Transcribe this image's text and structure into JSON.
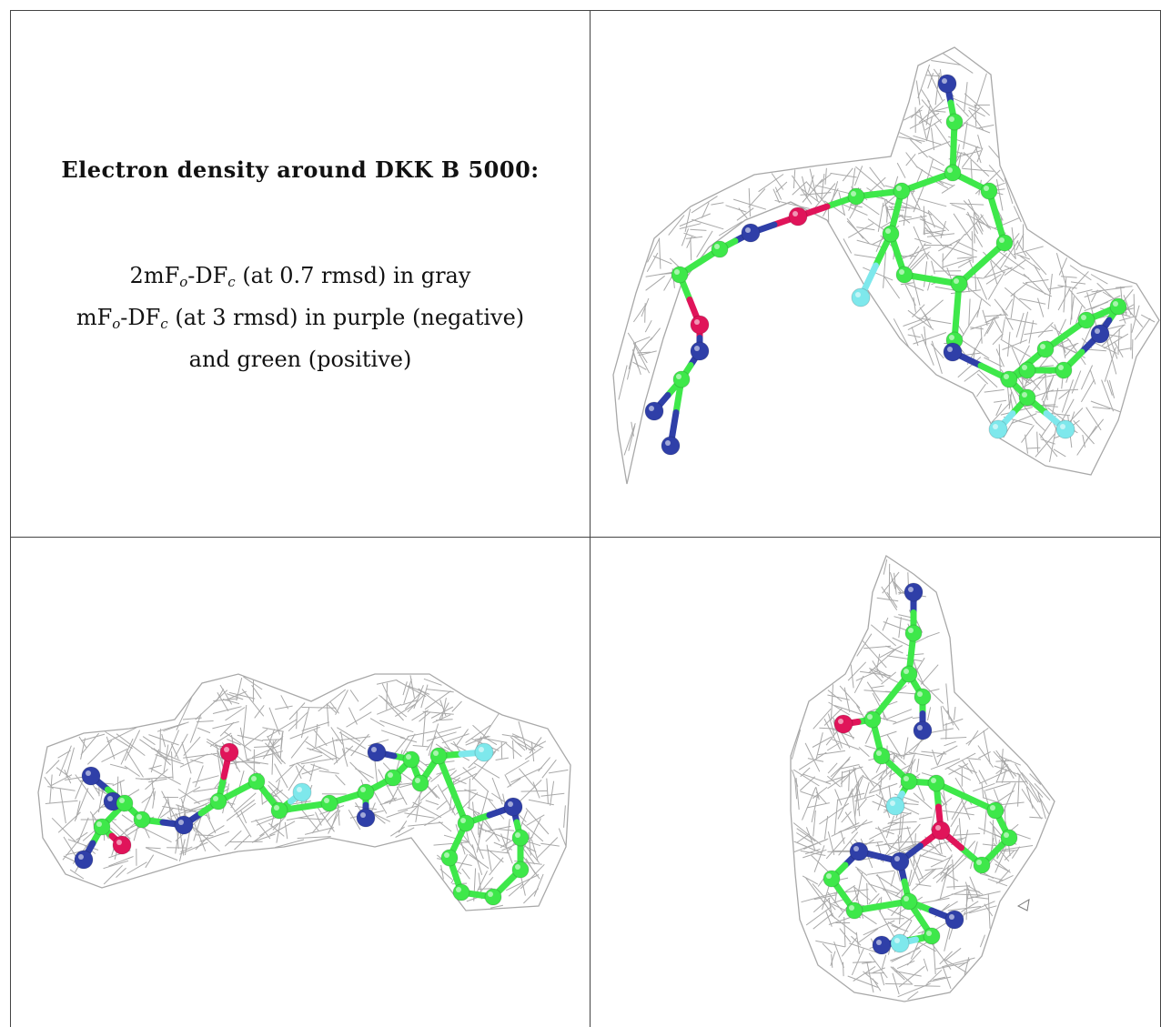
{
  "title": "Electron density around DKK B 5000:",
  "legend": {
    "line1_prefix": "2mF",
    "line1_sub1": "o",
    "line1_mid": "-DF",
    "line1_sub2": "c",
    "line1_suffix": " (at 0.7 rmsd) in gray",
    "line2_prefix": "mF",
    "line2_sub1": "o",
    "line2_mid": "-DF",
    "line2_sub2": "c",
    "line2_suffix": " (at 3 rmsd) in purple (negative)",
    "line3": "and green (positive)"
  },
  "colors": {
    "mesh": "#9a9a9a",
    "carbon": "#3ee84a",
    "nitrogen": "#2f3fa8",
    "oxygen": "#e0145a",
    "fluorine": "#7ee8ec",
    "negative_density": "#d020c0",
    "border": "#444444"
  },
  "panels": [
    {
      "view": "top-right"
    },
    {
      "view": "bottom-left"
    },
    {
      "view": "bottom-right"
    }
  ]
}
